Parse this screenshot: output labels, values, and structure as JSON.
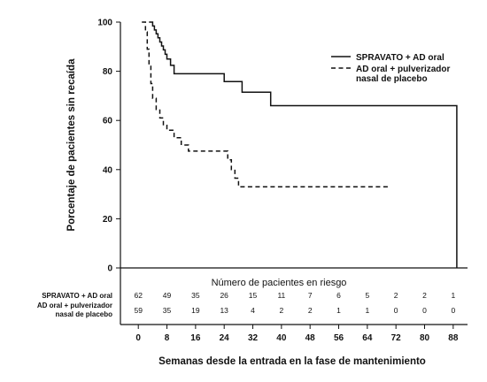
{
  "chart_data": {
    "type": "line",
    "subtype": "kaplan-meier step curve",
    "xlabel": "Semanas desde la entrada en la fase de mantenimiento",
    "ylabel": "Porcentaje de pacientes sin recaída",
    "xlim": [
      -5,
      92
    ],
    "ylim": [
      0,
      100
    ],
    "xticks": [
      0,
      8,
      16,
      24,
      32,
      40,
      48,
      56,
      64,
      72,
      80,
      88
    ],
    "yticks": [
      0,
      20,
      40,
      60,
      80,
      100
    ],
    "grid": false,
    "legend_position": "top-right",
    "series": [
      {
        "name": "SPRAVATO + AD oral",
        "line_style": "solid",
        "x": [
          3,
          4,
          4.5,
          5,
          5.5,
          6,
          6.5,
          7,
          7.5,
          8,
          9,
          10,
          24,
          29,
          37,
          89,
          89
        ],
        "y": [
          100,
          98.4,
          96.8,
          95.2,
          93.6,
          91.9,
          90.3,
          88.7,
          86.9,
          85,
          82.4,
          79,
          75.8,
          71.5,
          66,
          66,
          0
        ]
      },
      {
        "name_lines": [
          "AD oral + pulverizador",
          "nasal de placebo"
        ],
        "line_style": "dashed",
        "x": [
          1,
          2,
          2.5,
          3,
          3.5,
          4,
          5,
          6,
          7,
          8,
          10,
          12,
          14,
          25,
          26,
          27,
          28,
          70
        ],
        "y": [
          100,
          96,
          89,
          82,
          75,
          69,
          64.5,
          61,
          58,
          56,
          53,
          50,
          47.5,
          44,
          40,
          36.5,
          33,
          33
        ]
      }
    ],
    "risk_table": {
      "title": "Número de pacientes en riesgo",
      "x": [
        0,
        8,
        16,
        24,
        32,
        40,
        48,
        56,
        64,
        72,
        80,
        88
      ],
      "rows": [
        {
          "label_lines": [
            "SPRAVATO + AD oral"
          ],
          "values": [
            "62",
            "49",
            "35",
            "26",
            "15",
            "11",
            "7",
            "6",
            "5",
            "2",
            "2",
            "1"
          ]
        },
        {
          "label_lines": [
            "AD oral + pulverizador",
            "nasal de placebo"
          ],
          "values": [
            "59",
            "35",
            "19",
            "13",
            "4",
            "2",
            "2",
            "1",
            "1",
            "0",
            "0",
            "0"
          ]
        }
      ]
    }
  }
}
